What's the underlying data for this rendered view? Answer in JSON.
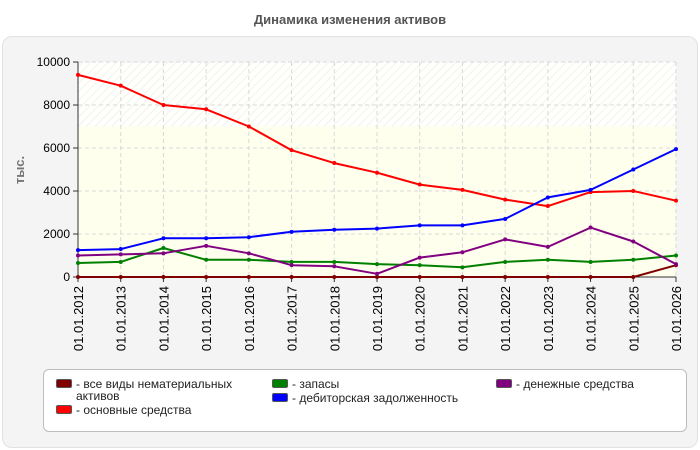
{
  "chart_data": {
    "type": "line",
    "title": "Динамика изменения активов",
    "ylabel": "тыс.",
    "xlabel": "",
    "ylim": [
      0,
      10000
    ],
    "yticks": [
      "0",
      "2000",
      "4000",
      "6000",
      "8000",
      "10000"
    ],
    "grid": true,
    "legend_position": "bottom",
    "categories": [
      "01.01.2012",
      "01.01.2013",
      "01.01.2014",
      "01.01.2015",
      "01.01.2016",
      "01.01.2017",
      "01.01.2018",
      "01.01.2019",
      "01.01.2020",
      "01.01.2021",
      "01.01.2022",
      "01.01.2023",
      "01.01.2024",
      "01.01.2025",
      "01.01.2026"
    ],
    "series": [
      {
        "name": "все виды нематериальных активов",
        "color": "#800000",
        "values": [
          0,
          0,
          0,
          0,
          0,
          0,
          0,
          0,
          0,
          0,
          0,
          0,
          0,
          0,
          550
        ]
      },
      {
        "name": "запасы",
        "color": "#008000",
        "values": [
          650,
          700,
          1350,
          800,
          800,
          700,
          700,
          600,
          550,
          450,
          700,
          800,
          700,
          800,
          1000
        ]
      },
      {
        "name": "денежные средства",
        "color": "#800080",
        "values": [
          1000,
          1050,
          1100,
          1450,
          1100,
          550,
          500,
          150,
          900,
          1150,
          1750,
          1400,
          2300,
          1650,
          600
        ]
      },
      {
        "name": "основные средства",
        "color": "#ff0000",
        "values": [
          9400,
          8900,
          8000,
          7800,
          7000,
          5900,
          5300,
          4850,
          4300,
          4050,
          3600,
          3300,
          3950,
          4000,
          3550
        ]
      },
      {
        "name": "дебиторская задолженность",
        "color": "#0000ff",
        "values": [
          1250,
          1300,
          1800,
          1800,
          1850,
          2100,
          2200,
          2250,
          2400,
          2400,
          2700,
          3700,
          4050,
          5000,
          5950
        ]
      }
    ]
  }
}
